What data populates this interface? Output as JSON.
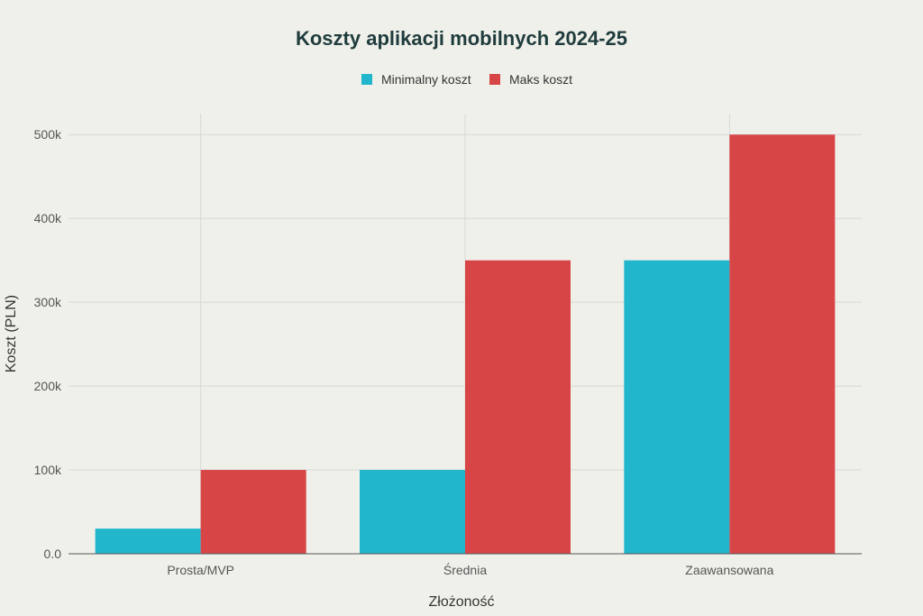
{
  "chart_data": {
    "type": "bar",
    "title": "Koszty aplikacji mobilnych 2024-25",
    "xlabel": "Złożoność",
    "ylabel": "Koszt (PLN)",
    "categories": [
      "Prosta/MVP",
      "Średnia",
      "Zaawansowana"
    ],
    "series": [
      {
        "name": "Minimalny koszt",
        "color": "#21b6cc",
        "values": [
          30000,
          100000,
          350000
        ]
      },
      {
        "name": "Maks koszt",
        "color": "#d84547",
        "values": [
          100000,
          350000,
          500000
        ]
      }
    ],
    "ylim": [
      0,
      525000
    ],
    "yticks": [
      0,
      100000,
      200000,
      300000,
      400000,
      500000
    ],
    "ytick_labels": [
      "0.0",
      "100k",
      "200k",
      "300k",
      "400k",
      "500k"
    ],
    "legend_position": "top-center",
    "grid": true
  }
}
